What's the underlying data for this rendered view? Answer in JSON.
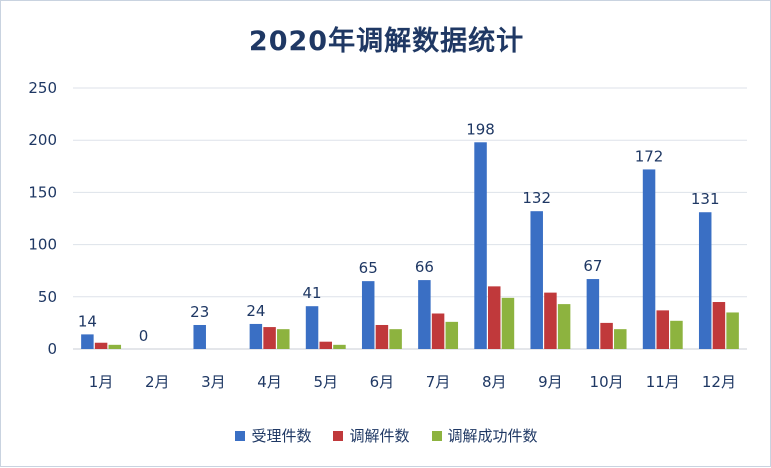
{
  "chart_data": {
    "type": "bar",
    "title": "2020年调解数据统计",
    "categories": [
      "1月",
      "2月",
      "3月",
      "4月",
      "5月",
      "6月",
      "7月",
      "8月",
      "9月",
      "10月",
      "11月",
      "12月"
    ],
    "series": [
      {
        "name": "受理件数",
        "color": "#3a6fc4",
        "values": [
          14,
          0,
          23,
          24,
          41,
          65,
          66,
          198,
          132,
          67,
          172,
          131
        ],
        "labeled": true
      },
      {
        "name": "调解件数",
        "color": "#c0393b",
        "values": [
          6,
          0,
          0,
          21,
          7,
          23,
          34,
          60,
          54,
          25,
          37,
          45
        ],
        "labeled": false
      },
      {
        "name": "调解成功件数",
        "color": "#8db33f",
        "values": [
          4,
          0,
          0,
          19,
          4,
          19,
          26,
          49,
          43,
          19,
          27,
          35
        ],
        "labeled": false
      }
    ],
    "yticks": [
      0,
      50,
      100,
      150,
      200,
      250
    ],
    "ylim": [
      0,
      250
    ],
    "grid": true,
    "legend_position": "bottom"
  }
}
